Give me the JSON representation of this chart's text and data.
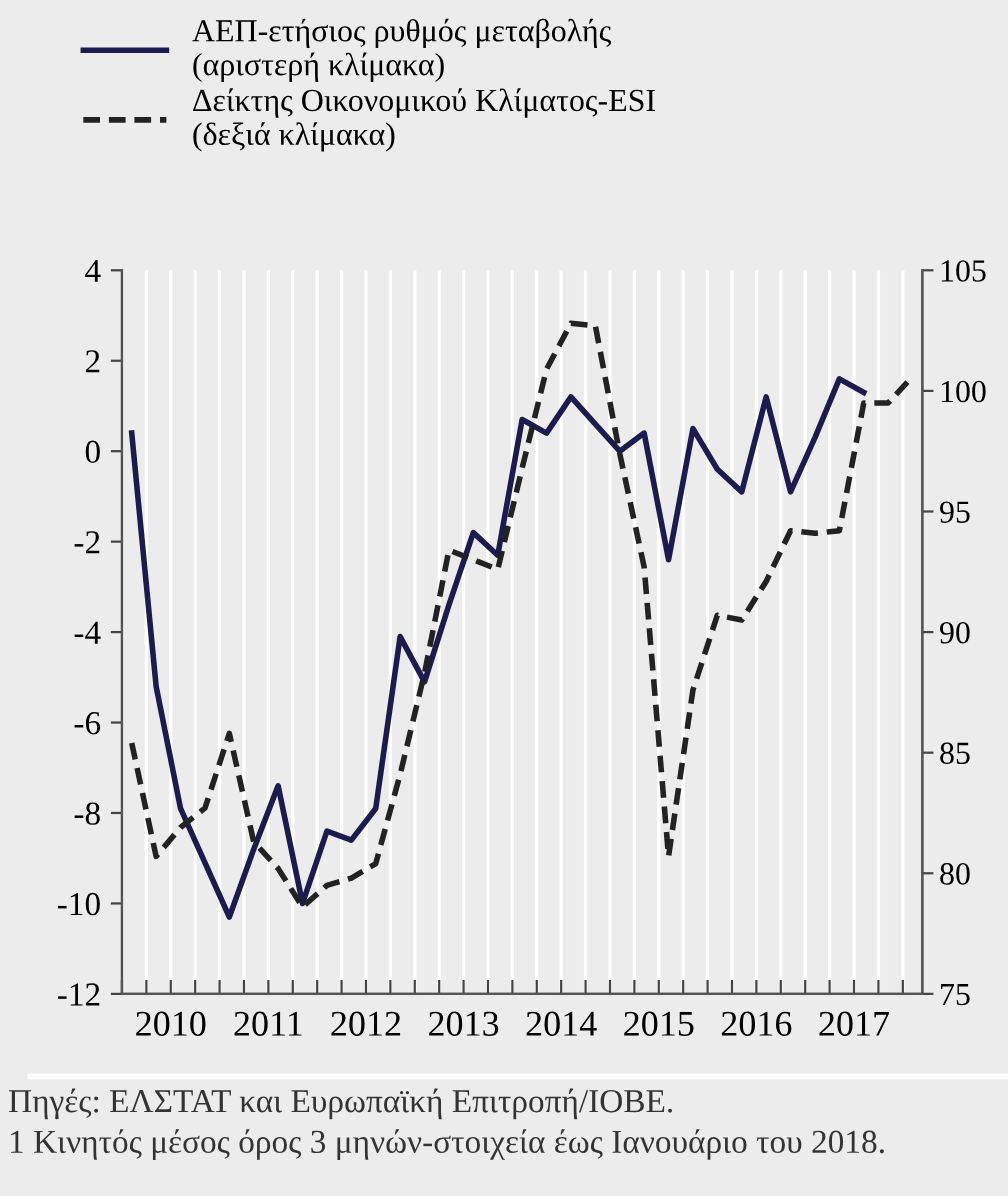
{
  "chart_data": {
    "type": "line",
    "x": [
      2010.1,
      2010.35,
      2010.6,
      2010.85,
      2011.1,
      2011.35,
      2011.6,
      2011.85,
      2012.1,
      2012.35,
      2012.6,
      2012.85,
      2013.1,
      2013.35,
      2013.6,
      2013.85,
      2014.1,
      2014.35,
      2014.6,
      2014.85,
      2015.1,
      2015.35,
      2015.6,
      2015.85,
      2016.1,
      2016.35,
      2016.6,
      2016.85,
      2017.1,
      2017.35,
      2017.6
    ],
    "series": [
      {
        "name": "ΑΕΠ-ετήσιος ρυθμός μεταβολής\n(αριστερή κλίμακα)",
        "color": "#1c1a4e",
        "line_style": "solid",
        "values": [
          0.4,
          -5.2,
          -7.9,
          -9.1,
          -10.3,
          -8.8,
          -7.4,
          -10.0,
          -8.4,
          -8.6,
          -7.9,
          -4.1,
          -5.1,
          -3.4,
          -1.8,
          -2.3,
          0.7,
          0.4,
          1.2,
          0.6,
          0.0,
          0.4,
          -2.4,
          0.5,
          -0.4,
          -0.9,
          1.2,
          -0.9,
          0.3,
          1.6,
          1.3
        ]
      },
      {
        "name": "Δείκτης Οικονομικού Κλίματος-ESI\n(δεξιά κλίμακα)",
        "color": "#222222",
        "line_style": "dashed",
        "axis": "y2",
        "x": [
          2010.1,
          2010.35,
          2010.6,
          2010.85,
          2011.1,
          2011.35,
          2011.6,
          2011.85,
          2012.1,
          2012.35,
          2012.6,
          2012.85,
          2013.1,
          2013.35,
          2013.6,
          2013.85,
          2014.1,
          2014.35,
          2014.6,
          2014.85,
          2015.1,
          2015.35,
          2015.6,
          2015.85,
          2016.1,
          2016.35,
          2016.6,
          2016.85,
          2017.1,
          2017.35,
          2017.6,
          2017.85,
          2018.1
        ],
        "values": [
          85.4,
          80.7,
          81.9,
          82.7,
          85.8,
          81.3,
          80.2,
          78.6,
          79.5,
          79.8,
          80.4,
          84.1,
          88.3,
          93.4,
          93.0,
          92.6,
          96.8,
          100.9,
          102.8,
          102.7,
          97.4,
          92.7,
          80.7,
          87.6,
          90.7,
          90.5,
          92.1,
          94.2,
          94.1,
          94.2,
          99.5,
          99.5,
          100.6
        ]
      }
    ],
    "xlim": [
      2010,
      2018.2
    ],
    "xticks": [
      {
        "value": 2010,
        "label": null
      },
      {
        "value": 2010.25,
        "label": null
      },
      {
        "value": 2010.5,
        "label": "2010"
      },
      {
        "value": 2010.75,
        "label": null
      },
      {
        "value": 2011,
        "label": null
      },
      {
        "value": 2011.25,
        "label": null
      },
      {
        "value": 2011.5,
        "label": "2011"
      },
      {
        "value": 2011.75,
        "label": null
      },
      {
        "value": 2012,
        "label": null
      },
      {
        "value": 2012.25,
        "label": null
      },
      {
        "value": 2012.5,
        "label": "2012"
      },
      {
        "value": 2012.75,
        "label": null
      },
      {
        "value": 2013,
        "label": null
      },
      {
        "value": 2013.25,
        "label": null
      },
      {
        "value": 2013.5,
        "label": "2013"
      },
      {
        "value": 2013.75,
        "label": null
      },
      {
        "value": 2014,
        "label": null
      },
      {
        "value": 2014.25,
        "label": null
      },
      {
        "value": 2014.5,
        "label": "2014"
      },
      {
        "value": 2014.75,
        "label": null
      },
      {
        "value": 2015,
        "label": null
      },
      {
        "value": 2015.25,
        "label": null
      },
      {
        "value": 2015.5,
        "label": "2015"
      },
      {
        "value": 2015.75,
        "label": null
      },
      {
        "value": 2016,
        "label": null
      },
      {
        "value": 2016.25,
        "label": null
      },
      {
        "value": 2016.5,
        "label": "2016"
      },
      {
        "value": 2016.75,
        "label": null
      },
      {
        "value": 2017,
        "label": null
      },
      {
        "value": 2017.25,
        "label": null
      },
      {
        "value": 2017.5,
        "label": "2017"
      },
      {
        "value": 2017.75,
        "label": null
      },
      {
        "value": 2018,
        "label": null
      }
    ],
    "ylim": [
      -12,
      4
    ],
    "yticks": [
      -12,
      -10,
      -8,
      -6,
      -4,
      -2,
      0,
      2,
      4
    ],
    "y2lim": [
      75,
      105
    ],
    "y2ticks": [
      75,
      80,
      85,
      90,
      95,
      100,
      105
    ],
    "grid": "x",
    "legend": "top left",
    "marker": "none",
    "annotations": [
      "Πηγές: ΕΛΣΤΑΤ και Ευρωπαϊκή Επιτροπή/ΙΟΒΕ.",
      "1 Κινητός μέσος όρος 3 μηνών-στοιχεία έως Ιανουάριο του 2018."
    ]
  }
}
